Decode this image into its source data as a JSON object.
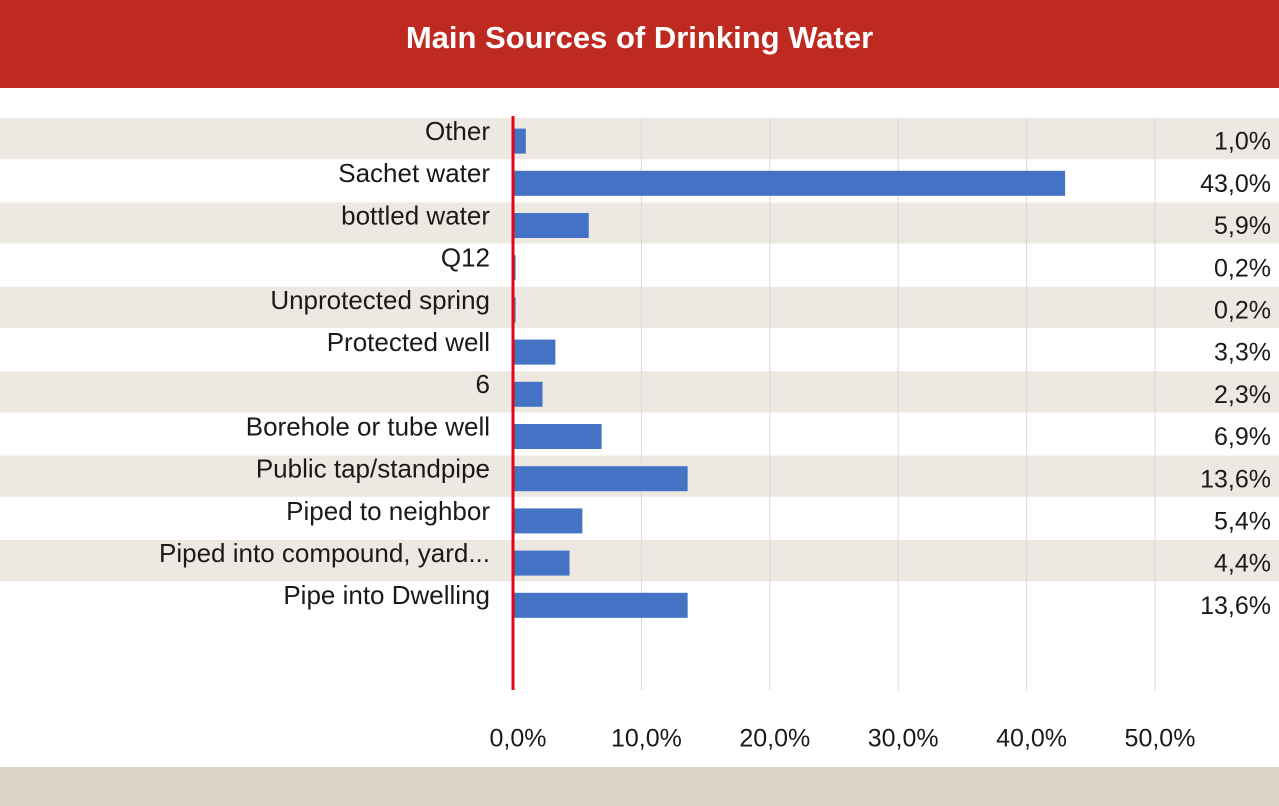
{
  "chart_data": {
    "type": "bar",
    "orientation": "horizontal",
    "title": "Main Sources of Drinking Water",
    "categories": [
      "Other",
      "Sachet water",
      "bottled water",
      "Q12",
      "Unprotected spring",
      "Protected well",
      "6",
      "Borehole or tube well",
      "Public tap/standpipe",
      "Piped to neighbor",
      "Piped into compound, yard...",
      "Pipe into Dwelling"
    ],
    "values": [
      1.0,
      43.0,
      5.9,
      0.2,
      0.2,
      3.3,
      2.3,
      6.9,
      13.6,
      5.4,
      4.4,
      13.6
    ],
    "value_labels": [
      "1,0%",
      "43,0%",
      "5,9%",
      "0,2%",
      "0,2%",
      "3,3%",
      "2,3%",
      "6,9%",
      "13,6%",
      "5,4%",
      "4,4%",
      "13,6%"
    ],
    "xlim": [
      0,
      50
    ],
    "x_ticks": [
      0,
      10,
      20,
      30,
      40,
      50
    ],
    "x_tick_labels": [
      "0,0%",
      "10,0%",
      "20,0%",
      "30,0%",
      "40,0%",
      "50,0%"
    ],
    "grid": "vertical",
    "colors": {
      "bar": "#4472c4",
      "axis": "#e30613",
      "title_bg": "#bf2a20",
      "band": "#ede8e1",
      "footer": "#ddd6c7",
      "grid": "#d9d9d9"
    }
  }
}
